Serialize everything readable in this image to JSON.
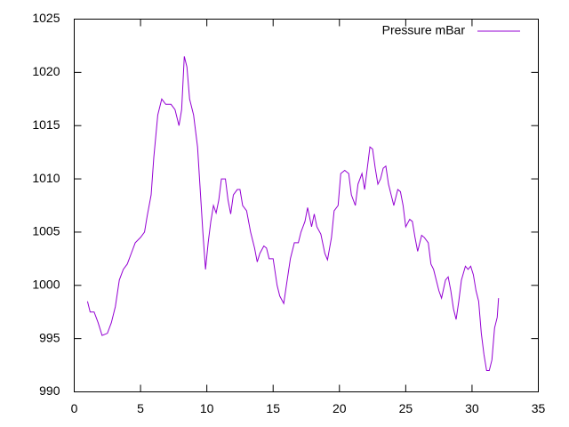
{
  "chart_data": {
    "type": "line",
    "x": [
      1.0,
      1.2,
      1.5,
      1.8,
      2.1,
      2.5,
      2.8,
      3.1,
      3.4,
      3.7,
      4.0,
      4.3,
      4.6,
      5.0,
      5.3,
      5.5,
      5.8,
      6.0,
      6.3,
      6.6,
      6.9,
      7.3,
      7.6,
      7.9,
      8.1,
      8.3,
      8.5,
      8.7,
      9.0,
      9.3,
      9.5,
      9.7,
      9.9,
      10.1,
      10.3,
      10.5,
      10.7,
      10.9,
      11.1,
      11.4,
      11.6,
      11.8,
      12.0,
      12.3,
      12.5,
      12.7,
      13.0,
      13.3,
      13.6,
      13.8,
      14.0,
      14.3,
      14.5,
      14.7,
      15.0,
      15.3,
      15.5,
      15.8,
      16.0,
      16.3,
      16.6,
      16.9,
      17.1,
      17.4,
      17.6,
      17.9,
      18.1,
      18.3,
      18.6,
      18.9,
      19.1,
      19.4,
      19.6,
      19.9,
      20.1,
      20.4,
      20.7,
      20.9,
      21.2,
      21.4,
      21.7,
      21.9,
      22.1,
      22.3,
      22.5,
      22.7,
      22.9,
      23.1,
      23.3,
      23.5,
      23.7,
      23.9,
      24.1,
      24.4,
      24.6,
      24.8,
      25.0,
      25.3,
      25.5,
      25.7,
      25.9,
      26.2,
      26.4,
      26.7,
      26.9,
      27.1,
      27.3,
      27.5,
      27.7,
      28.0,
      28.2,
      28.4,
      28.6,
      28.8,
      29.0,
      29.2,
      29.5,
      29.7,
      29.9,
      30.1,
      30.3,
      30.5,
      30.7,
      30.9,
      31.1,
      31.3,
      31.5,
      31.7,
      31.9,
      32.0
    ],
    "series": [
      {
        "name": "Pressure mBar",
        "color": "#9400d3",
        "values": [
          998.5,
          997.5,
          997.5,
          996.5,
          995.3,
          995.5,
          996.5,
          998,
          1000.5,
          1001.5,
          1002,
          1003,
          1004,
          1004.5,
          1005,
          1006.5,
          1008.5,
          1012,
          1016,
          1017.5,
          1017,
          1017,
          1016.5,
          1015,
          1016.5,
          1021.5,
          1020.5,
          1017.5,
          1016,
          1013,
          1009,
          1005,
          1001.5,
          1004,
          1006,
          1007.5,
          1006.8,
          1008,
          1010,
          1010,
          1008,
          1006.7,
          1008.5,
          1009,
          1009,
          1007.5,
          1007,
          1005,
          1003.5,
          1002.2,
          1003,
          1003.7,
          1003.5,
          1002.5,
          1002.5,
          1000,
          999,
          998.3,
          1000,
          1002.5,
          1004,
          1004,
          1005,
          1006,
          1007.3,
          1005.5,
          1006.7,
          1005.5,
          1004.8,
          1003,
          1002.4,
          1004.5,
          1007,
          1007.5,
          1010.5,
          1010.8,
          1010.5,
          1008.5,
          1007.5,
          1009.5,
          1010.5,
          1009,
          1011,
          1013,
          1012.8,
          1011,
          1009.5,
          1010,
          1011,
          1011.2,
          1009.5,
          1008.5,
          1007.5,
          1009,
          1008.8,
          1007.5,
          1005.5,
          1006.2,
          1006,
          1004.5,
          1003.2,
          1004.7,
          1004.5,
          1004,
          1002,
          1001.5,
          1000.5,
          999.5,
          998.8,
          1000.5,
          1000.8,
          999.5,
          997.8,
          996.8,
          998.5,
          1000.5,
          1001.8,
          1001.5,
          1001.8,
          1001,
          999.5,
          998.5,
          995.5,
          993.5,
          992,
          992,
          993,
          996,
          997,
          998.8
        ]
      }
    ],
    "xlim": [
      0,
      35
    ],
    "xticks": [
      0,
      5,
      10,
      15,
      20,
      25,
      30,
      35
    ],
    "ylim": [
      990,
      1025
    ],
    "yticks": [
      990,
      995,
      1000,
      1005,
      1010,
      1015,
      1020,
      1025
    ],
    "legend": "top right"
  }
}
